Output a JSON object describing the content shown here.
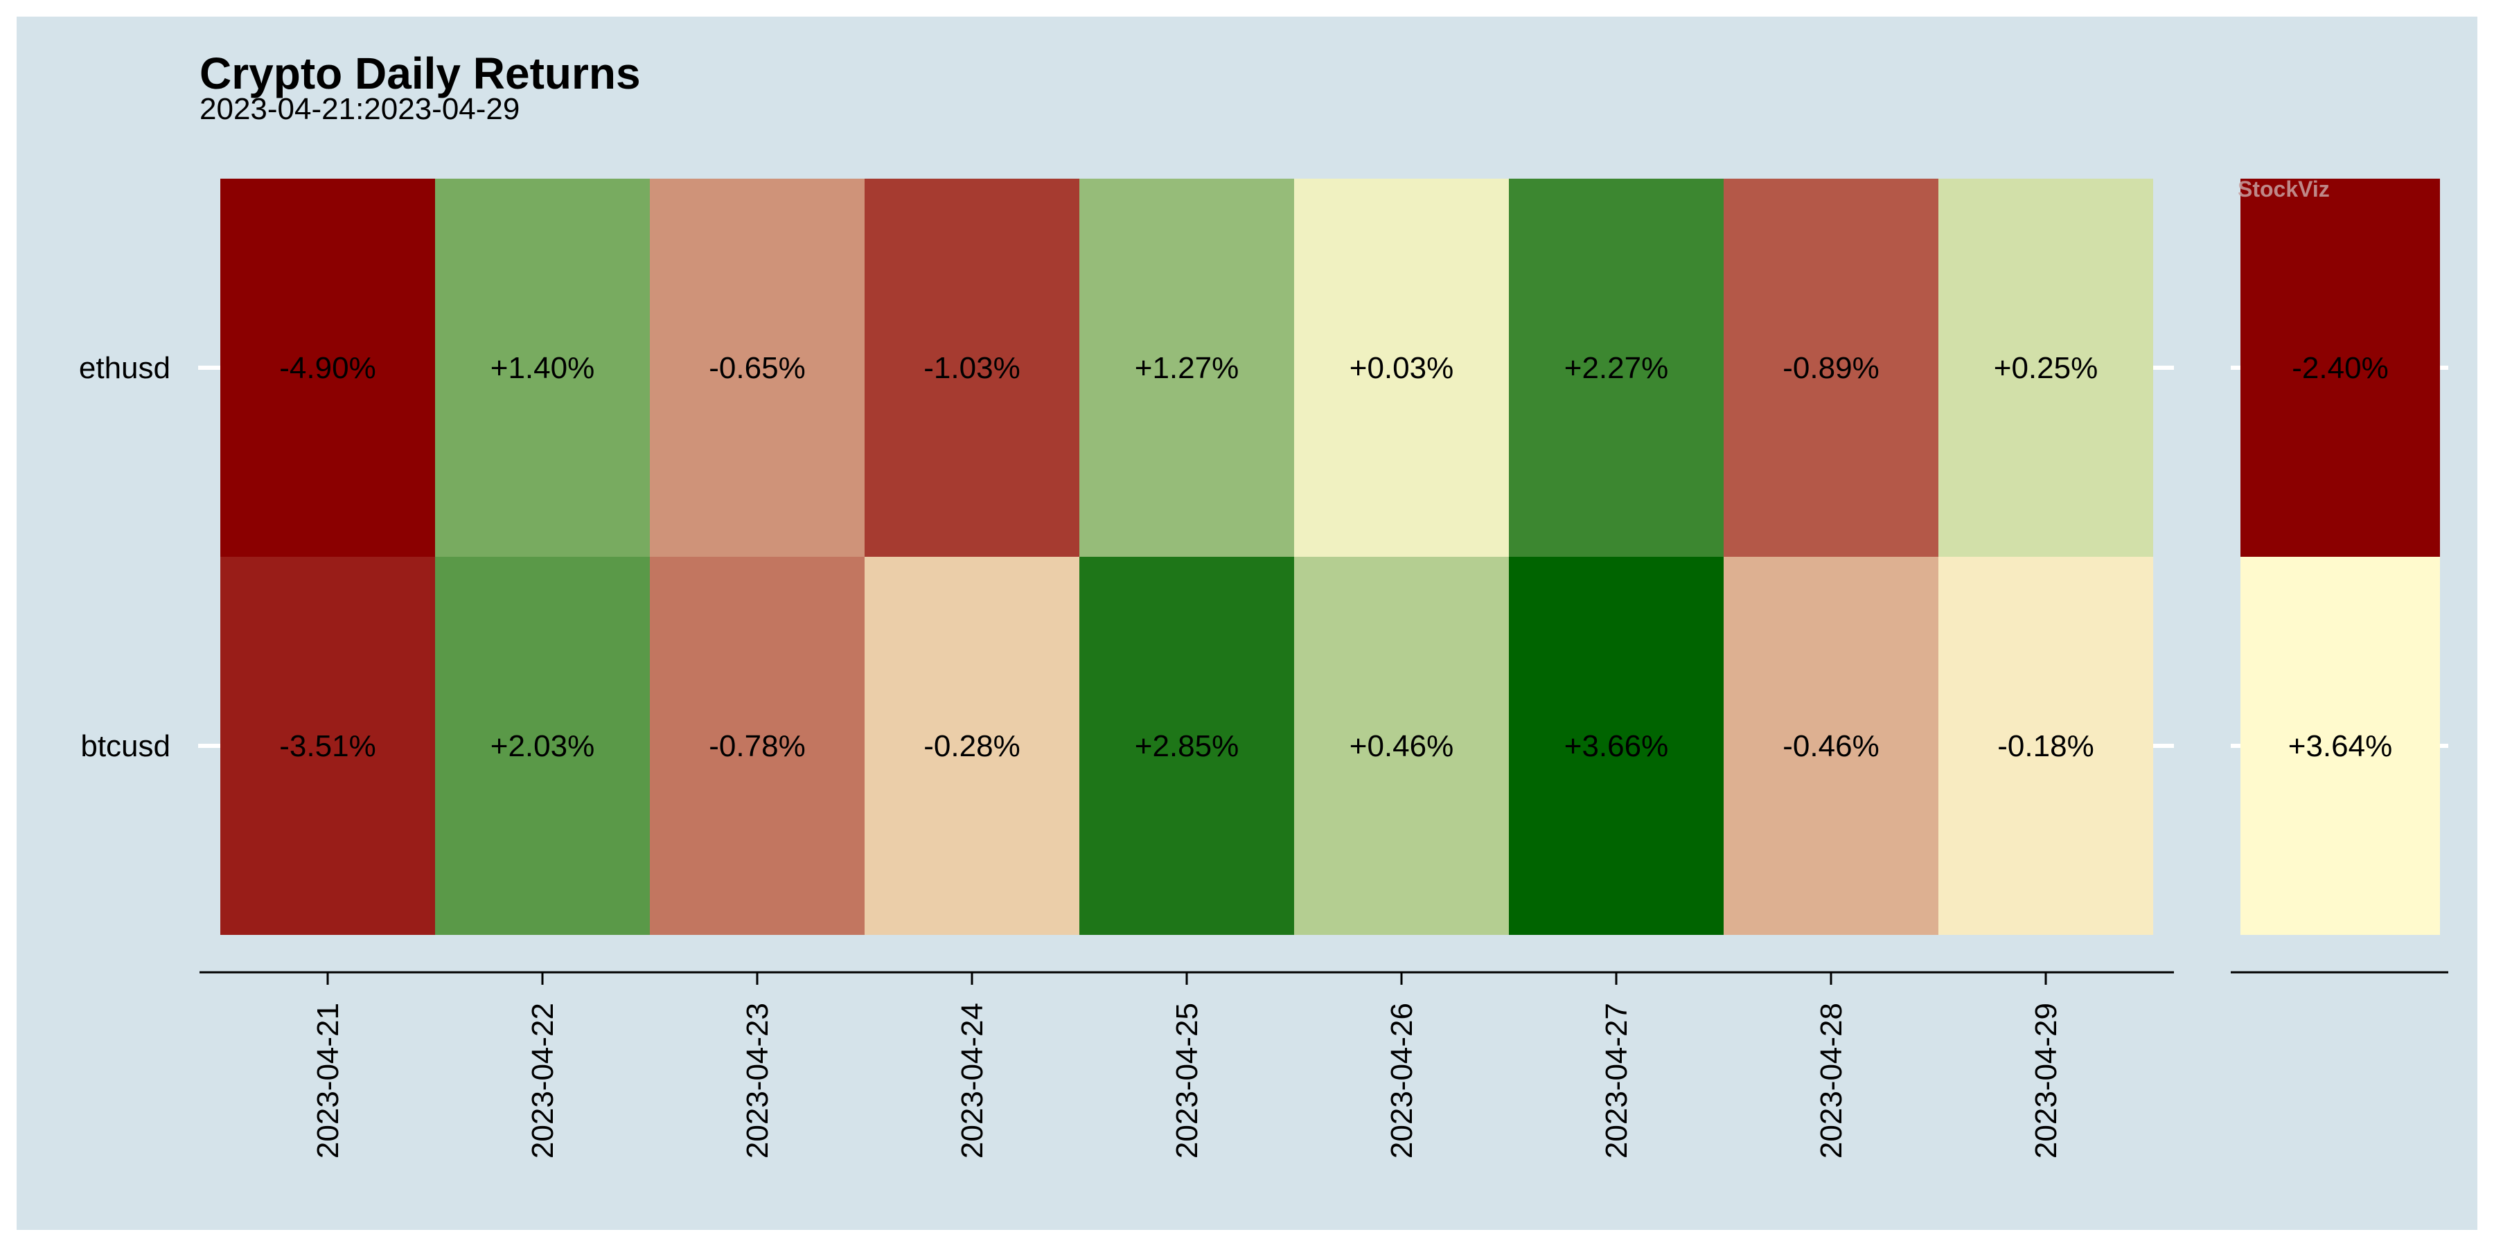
{
  "title": "Crypto Daily Returns",
  "subtitle": "2023-04-21:2023-04-29",
  "watermark": "StockViz",
  "colors": {
    "background": "#d5e3ea",
    "strong_negative": "#8b0000",
    "neutral": "#fffacd",
    "strong_positive": "#006400",
    "text": "#000000",
    "axis": "#000000",
    "tick_mark": "#ffffff"
  },
  "chart_data": {
    "type": "heatmap",
    "rows": [
      "ethusd",
      "btcusd"
    ],
    "daily": {
      "categories": [
        "2023-04-21",
        "2023-04-22",
        "2023-04-23",
        "2023-04-24",
        "2023-04-25",
        "2023-04-26",
        "2023-04-27",
        "2023-04-28",
        "2023-04-29"
      ],
      "values": [
        [
          -4.9,
          1.4,
          -0.65,
          -1.03,
          1.27,
          0.03,
          2.27,
          -0.89,
          0.25
        ],
        [
          -3.51,
          2.03,
          -0.78,
          -0.28,
          2.85,
          0.46,
          3.66,
          -0.46,
          -0.18
        ]
      ],
      "labels": [
        [
          "-4.90%",
          "+1.40%",
          "-0.65%",
          "-1.03%",
          "+1.27%",
          "+0.03%",
          "+2.27%",
          "-0.89%",
          "+0.25%"
        ],
        [
          "-3.51%",
          "+2.03%",
          "-0.78%",
          "-0.28%",
          "+2.85%",
          "+0.46%",
          "+3.66%",
          "-0.46%",
          "-0.18%"
        ]
      ]
    },
    "total": {
      "values": [
        -2.4,
        3.64
      ],
      "labels": [
        "-2.40%",
        "+3.64%"
      ]
    }
  }
}
